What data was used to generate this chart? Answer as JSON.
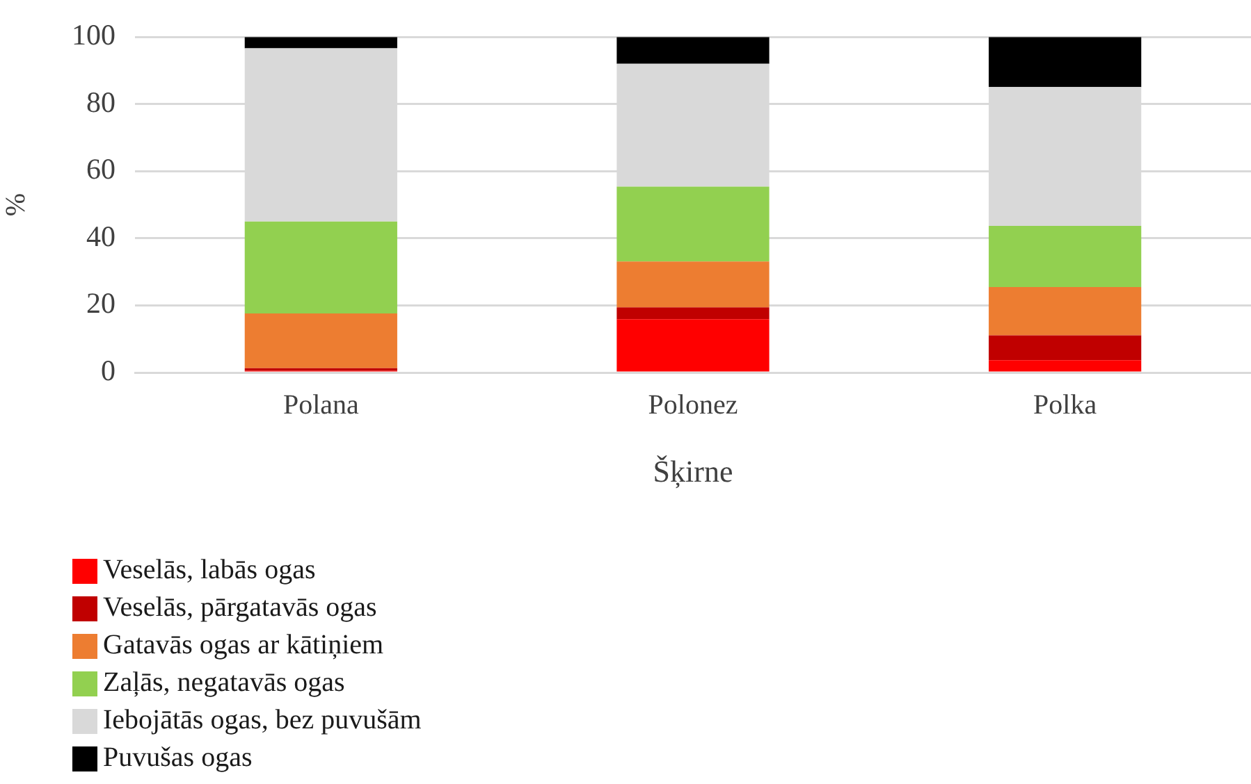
{
  "chart_data": {
    "type": "bar",
    "stacked": true,
    "xlabel": "Šķirne",
    "ylabel": "%",
    "categories": [
      "Polana",
      "Polonez",
      "Polka"
    ],
    "series": [
      {
        "name": "Veselās, labās ogas",
        "color": "#ff0000",
        "values": [
          0.5,
          15.9,
          3.7
        ]
      },
      {
        "name": "Veselās, pārgatavās ogas",
        "color": "#c00000",
        "values": [
          0.8,
          3.5,
          7.4
        ]
      },
      {
        "name": "Gatavās ogas ar kātiņiem",
        "color": "#ed7d31",
        "values": [
          16.3,
          13.7,
          14.4
        ]
      },
      {
        "name": "Zaļās, negatavās ogas",
        "color": "#92d050",
        "values": [
          27.4,
          22.3,
          18.2
        ]
      },
      {
        "name": "Iebojātās ogas, bez puvušām",
        "color": "#d9d9d9",
        "values": [
          51.6,
          36.6,
          41.4
        ]
      },
      {
        "name": "Puvušas ogas",
        "color": "#000000",
        "values": [
          3.4,
          8.0,
          14.9
        ]
      }
    ],
    "ylim": [
      0,
      100
    ],
    "yticks": [
      0,
      20,
      40,
      60,
      80,
      100
    ],
    "grid": "y",
    "legend": "bottom left"
  }
}
